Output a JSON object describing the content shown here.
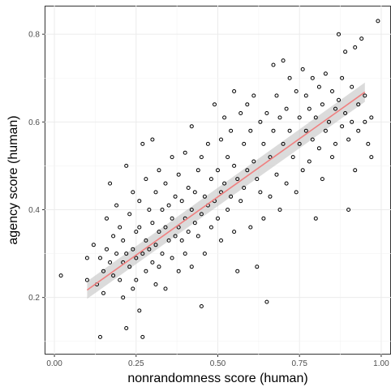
{
  "chart_data": {
    "type": "scatter",
    "title": "",
    "xlabel": "nonrandomness score (human)",
    "ylabel": "agency score (human)",
    "xlim": [
      -0.03,
      1.03
    ],
    "ylim": [
      0.07,
      0.865
    ],
    "xticks": [
      0.0,
      0.25,
      0.5,
      0.75,
      1.0
    ],
    "xtick_labels": [
      "0.00",
      "0.25",
      "0.50",
      "0.75",
      "1.00"
    ],
    "yticks": [
      0.2,
      0.4,
      0.6,
      0.8
    ],
    "ytick_labels": [
      "0.2",
      "0.4",
      "0.6",
      "0.8"
    ],
    "grid": true,
    "legend": "none",
    "fit": {
      "method": "linear regression with confidence band",
      "x": [
        0.1,
        0.95
      ],
      "y": [
        0.217,
        0.668
      ],
      "band_halfwidth": [
        0.02,
        0.022
      ],
      "color": "#f08080",
      "band_color": "#bdbdbd"
    },
    "series": [
      {
        "values": [
          [
            0.02,
            0.25
          ],
          [
            0.1,
            0.24
          ],
          [
            0.1,
            0.29
          ],
          [
            0.12,
            0.32
          ],
          [
            0.13,
            0.23
          ],
          [
            0.14,
            0.11
          ],
          [
            0.14,
            0.29
          ],
          [
            0.15,
            0.26
          ],
          [
            0.15,
            0.21
          ],
          [
            0.16,
            0.38
          ],
          [
            0.16,
            0.31
          ],
          [
            0.17,
            0.46
          ],
          [
            0.17,
            0.28
          ],
          [
            0.18,
            0.34
          ],
          [
            0.18,
            0.25
          ],
          [
            0.19,
            0.41
          ],
          [
            0.19,
            0.3
          ],
          [
            0.2,
            0.24
          ],
          [
            0.2,
            0.36
          ],
          [
            0.21,
            0.33
          ],
          [
            0.21,
            0.28
          ],
          [
            0.21,
            0.2
          ],
          [
            0.22,
            0.5
          ],
          [
            0.22,
            0.3
          ],
          [
            0.22,
            0.13
          ],
          [
            0.23,
            0.39
          ],
          [
            0.23,
            0.27
          ],
          [
            0.24,
            0.44
          ],
          [
            0.24,
            0.31
          ],
          [
            0.24,
            0.22
          ],
          [
            0.25,
            0.35
          ],
          [
            0.25,
            0.29
          ],
          [
            0.25,
            0.24
          ],
          [
            0.26,
            0.42
          ],
          [
            0.26,
            0.36
          ],
          [
            0.26,
            0.17
          ],
          [
            0.27,
            0.55
          ],
          [
            0.27,
            0.3
          ],
          [
            0.27,
            0.11
          ],
          [
            0.28,
            0.47
          ],
          [
            0.28,
            0.33
          ],
          [
            0.28,
            0.26
          ],
          [
            0.29,
            0.4
          ],
          [
            0.29,
            0.31
          ],
          [
            0.3,
            0.56
          ],
          [
            0.3,
            0.37
          ],
          [
            0.3,
            0.28
          ],
          [
            0.31,
            0.44
          ],
          [
            0.31,
            0.32
          ],
          [
            0.31,
            0.23
          ],
          [
            0.32,
            0.49
          ],
          [
            0.32,
            0.35
          ],
          [
            0.32,
            0.27
          ],
          [
            0.33,
            0.4
          ],
          [
            0.33,
            0.3
          ],
          [
            0.34,
            0.46
          ],
          [
            0.34,
            0.36
          ],
          [
            0.34,
            0.22
          ],
          [
            0.35,
            0.41
          ],
          [
            0.35,
            0.33
          ],
          [
            0.36,
            0.52
          ],
          [
            0.36,
            0.38
          ],
          [
            0.36,
            0.29
          ],
          [
            0.37,
            0.43
          ],
          [
            0.37,
            0.34
          ],
          [
            0.38,
            0.48
          ],
          [
            0.38,
            0.36
          ],
          [
            0.38,
            0.26
          ],
          [
            0.39,
            0.42
          ],
          [
            0.39,
            0.33
          ],
          [
            0.4,
            0.53
          ],
          [
            0.4,
            0.38
          ],
          [
            0.4,
            0.3
          ],
          [
            0.41,
            0.45
          ],
          [
            0.41,
            0.35
          ],
          [
            0.42,
            0.59
          ],
          [
            0.42,
            0.4
          ],
          [
            0.42,
            0.27
          ],
          [
            0.43,
            0.44
          ],
          [
            0.43,
            0.37
          ],
          [
            0.44,
            0.49
          ],
          [
            0.44,
            0.34
          ],
          [
            0.45,
            0.52
          ],
          [
            0.45,
            0.39
          ],
          [
            0.45,
            0.18
          ],
          [
            0.46,
            0.43
          ],
          [
            0.46,
            0.3
          ],
          [
            0.47,
            0.55
          ],
          [
            0.47,
            0.41
          ],
          [
            0.48,
            0.47
          ],
          [
            0.48,
            0.36
          ],
          [
            0.49,
            0.64
          ],
          [
            0.49,
            0.42
          ],
          [
            0.5,
            0.49
          ],
          [
            0.5,
            0.38
          ],
          [
            0.51,
            0.56
          ],
          [
            0.51,
            0.44
          ],
          [
            0.51,
            0.33
          ],
          [
            0.52,
            0.61
          ],
          [
            0.52,
            0.46
          ],
          [
            0.53,
            0.52
          ],
          [
            0.53,
            0.4
          ],
          [
            0.54,
            0.58
          ],
          [
            0.54,
            0.43
          ],
          [
            0.55,
            0.67
          ],
          [
            0.55,
            0.5
          ],
          [
            0.55,
            0.35
          ],
          [
            0.56,
            0.47
          ],
          [
            0.56,
            0.26
          ],
          [
            0.57,
            0.62
          ],
          [
            0.57,
            0.42
          ],
          [
            0.58,
            0.55
          ],
          [
            0.58,
            0.45
          ],
          [
            0.59,
            0.64
          ],
          [
            0.59,
            0.49
          ],
          [
            0.6,
            0.58
          ],
          [
            0.6,
            0.36
          ],
          [
            0.61,
            0.66
          ],
          [
            0.61,
            0.51
          ],
          [
            0.62,
            0.47
          ],
          [
            0.62,
            0.27
          ],
          [
            0.63,
            0.6
          ],
          [
            0.63,
            0.44
          ],
          [
            0.64,
            0.55
          ],
          [
            0.64,
            0.38
          ],
          [
            0.65,
            0.62
          ],
          [
            0.65,
            0.19
          ],
          [
            0.66,
            0.52
          ],
          [
            0.66,
            0.43
          ],
          [
            0.67,
            0.73
          ],
          [
            0.67,
            0.58
          ],
          [
            0.68,
            0.66
          ],
          [
            0.68,
            0.48
          ],
          [
            0.69,
            0.61
          ],
          [
            0.69,
            0.4
          ],
          [
            0.7,
            0.74
          ],
          [
            0.7,
            0.55
          ],
          [
            0.71,
            0.63
          ],
          [
            0.71,
            0.46
          ],
          [
            0.72,
            0.7
          ],
          [
            0.72,
            0.58
          ],
          [
            0.73,
            0.52
          ],
          [
            0.74,
            0.67
          ],
          [
            0.74,
            0.44
          ],
          [
            0.75,
            0.61
          ],
          [
            0.75,
            0.55
          ],
          [
            0.76,
            0.72
          ],
          [
            0.76,
            0.49
          ],
          [
            0.77,
            0.66
          ],
          [
            0.77,
            0.58
          ],
          [
            0.78,
            0.63
          ],
          [
            0.78,
            0.51
          ],
          [
            0.79,
            0.7
          ],
          [
            0.79,
            0.56
          ],
          [
            0.8,
            0.61
          ],
          [
            0.8,
            0.38
          ],
          [
            0.81,
            0.68
          ],
          [
            0.81,
            0.54
          ],
          [
            0.82,
            0.64
          ],
          [
            0.82,
            0.47
          ],
          [
            0.83,
            0.71
          ],
          [
            0.83,
            0.58
          ],
          [
            0.84,
            0.6
          ],
          [
            0.85,
            0.67
          ],
          [
            0.85,
            0.52
          ],
          [
            0.86,
            0.63
          ],
          [
            0.86,
            0.55
          ],
          [
            0.87,
            0.8
          ],
          [
            0.87,
            0.65
          ],
          [
            0.88,
            0.59
          ],
          [
            0.88,
            0.7
          ],
          [
            0.89,
            0.62
          ],
          [
            0.89,
            0.76
          ],
          [
            0.9,
            0.56
          ],
          [
            0.9,
            0.4
          ],
          [
            0.91,
            0.68
          ],
          [
            0.91,
            0.6
          ],
          [
            0.92,
            0.77
          ],
          [
            0.92,
            0.49
          ],
          [
            0.93,
            0.64
          ],
          [
            0.93,
            0.58
          ],
          [
            0.94,
            0.79
          ],
          [
            0.95,
            0.66
          ],
          [
            0.95,
            0.6
          ],
          [
            0.96,
            0.55
          ],
          [
            0.97,
            0.61
          ],
          [
            0.97,
            0.52
          ],
          [
            0.99,
            0.83
          ]
        ]
      }
    ]
  }
}
